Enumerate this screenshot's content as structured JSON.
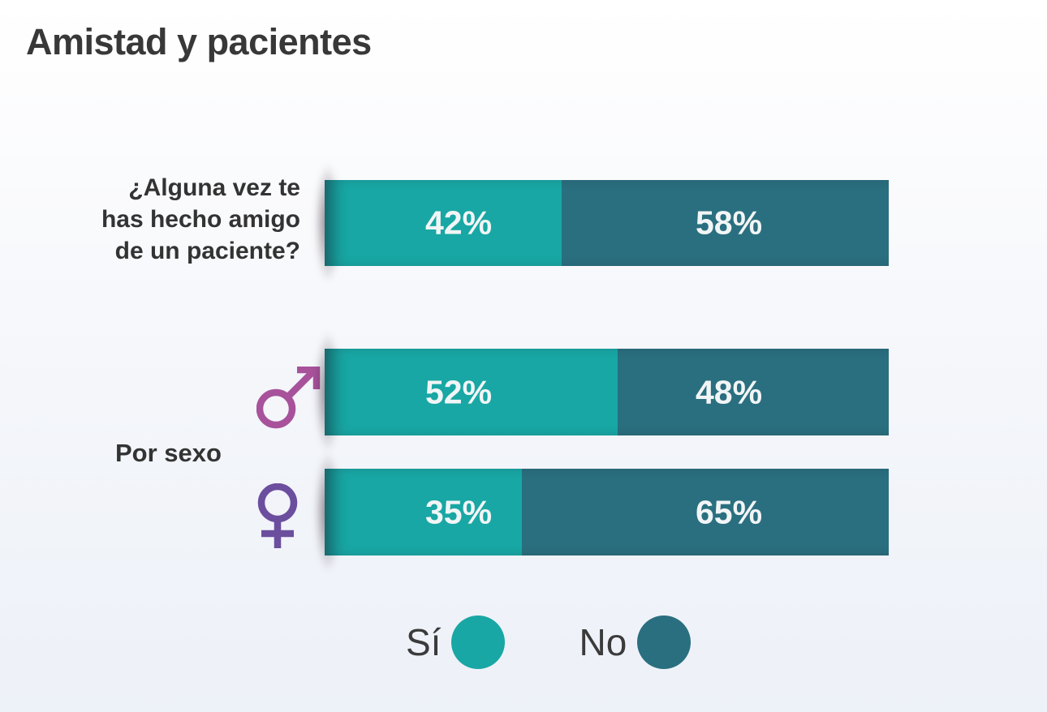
{
  "chart_data": {
    "type": "bar",
    "subtype": "stacked-horizontal-percent",
    "title": "Amistad y pacientes",
    "question": "¿Alguna vez te has hecho amigo de un paciente?",
    "group_label": "Por sexo",
    "categories": [
      "¿Alguna vez te has hecho amigo de un paciente?",
      "♂",
      "♀"
    ],
    "series": [
      {
        "name": "Sí",
        "color": "#18A7A4",
        "values": [
          42,
          52,
          35
        ]
      },
      {
        "name": "No",
        "color": "#2A6F7F",
        "values": [
          58,
          48,
          65
        ]
      }
    ],
    "value_unit": "%",
    "xlim": [
      0,
      100
    ],
    "grid": false,
    "legend_position": "bottom",
    "value_labels": [
      [
        "42%",
        "58%"
      ],
      [
        "52%",
        "48%"
      ],
      [
        "35%",
        "65%"
      ]
    ]
  },
  "icons": {
    "male": {
      "name": "male-symbol",
      "color": "#A8529B"
    },
    "female": {
      "name": "female-symbol",
      "color": "#6C4E9E"
    }
  },
  "colors": {
    "si_segment": "#18A7A4",
    "no_segment": "#2A6F7F",
    "bar_value_text": "#F2F5F6",
    "heading_text": "#383838",
    "body_text": "#333333",
    "background_top": "#FFFFFF",
    "background_bottom": "#EDF1F8"
  }
}
